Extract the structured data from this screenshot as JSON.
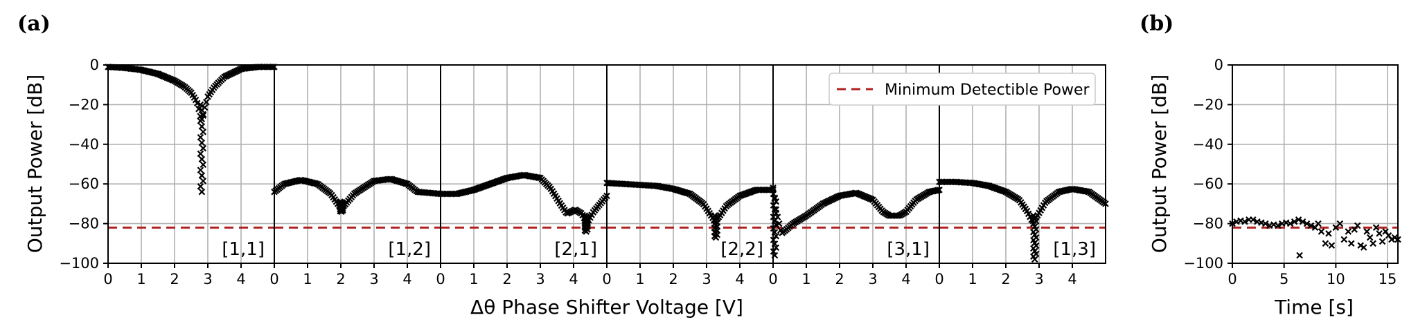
{
  "figure": {
    "panel_a_tag": "(a)",
    "panel_b_tag": "(b)",
    "colors": {
      "threshold": "#b22222",
      "markers": "#000000",
      "grid": "#b0b0b0"
    }
  },
  "chart_data": [
    {
      "type": "scatter",
      "panel": "(a)",
      "xlabel": "Δθ Phase Shifter Voltage [V]",
      "ylabel": "Output Power [dB]",
      "ylim": [
        -100,
        0
      ],
      "yticks": [
        0,
        -20,
        -40,
        -60,
        -80,
        -100
      ],
      "grid": true,
      "legend": {
        "location": "upper right",
        "entries": [
          "Minimum Detectible Power"
        ]
      },
      "reference_line": {
        "name": "Minimum Detectible Power",
        "y": -82
      },
      "subplots": [
        {
          "label": "[1,1]",
          "xlim": [
            0,
            5
          ],
          "xticks": [
            0,
            1,
            2,
            3,
            4
          ],
          "curve": [
            [
              0,
              -1
            ],
            [
              0.5,
              -1.5
            ],
            [
              1,
              -2.5
            ],
            [
              1.5,
              -4.5
            ],
            [
              2,
              -8
            ],
            [
              2.3,
              -11
            ],
            [
              2.5,
              -14
            ],
            [
              2.65,
              -18
            ],
            [
              2.7,
              -20
            ],
            [
              2.75,
              -24
            ],
            [
              2.8,
              -28
            ],
            [
              2.85,
              -26
            ],
            [
              2.9,
              -22
            ],
            [
              3,
              -16
            ],
            [
              3.2,
              -11
            ],
            [
              3.5,
              -6
            ],
            [
              4,
              -2
            ],
            [
              4.5,
              -1
            ],
            [
              5,
              -1
            ]
          ],
          "dip": {
            "x": 2.82,
            "y_min": -64,
            "y_max": -20
          }
        },
        {
          "label": "[1,2]",
          "xlim": [
            0,
            5
          ],
          "xticks": [
            0,
            1,
            2,
            3,
            4
          ],
          "curve": [
            [
              0,
              -64
            ],
            [
              0.3,
              -60
            ],
            [
              0.8,
              -58
            ],
            [
              1.3,
              -60
            ],
            [
              1.7,
              -65
            ],
            [
              1.95,
              -71
            ],
            [
              2.1,
              -71
            ],
            [
              2.4,
              -65
            ],
            [
              3,
              -58.5
            ],
            [
              3.5,
              -57.5
            ],
            [
              4,
              -60
            ],
            [
              4.3,
              -64
            ],
            [
              5,
              -65
            ]
          ],
          "dip": {
            "x": 2.02,
            "y_min": -74,
            "y_max": -69
          }
        },
        {
          "label": "[2,1]",
          "xlim": [
            0,
            5
          ],
          "xticks": [
            0,
            1,
            2,
            3,
            4
          ],
          "curve": [
            [
              0,
              -65
            ],
            [
              0.5,
              -65
            ],
            [
              1,
              -63
            ],
            [
              1.5,
              -60
            ],
            [
              2,
              -57
            ],
            [
              2.5,
              -55.5
            ],
            [
              3,
              -57
            ],
            [
              3.3,
              -62
            ],
            [
              3.6,
              -70
            ],
            [
              3.8,
              -75
            ],
            [
              4.05,
              -73
            ],
            [
              4.25,
              -75
            ],
            [
              4.4,
              -80
            ],
            [
              4.6,
              -74
            ],
            [
              4.8,
              -70
            ],
            [
              5,
              -66
            ]
          ],
          "dip": {
            "x": 4.38,
            "y_min": -84,
            "y_max": -76
          }
        },
        {
          "label": "[2,2]",
          "xlim": [
            0,
            5
          ],
          "xticks": [
            0,
            1,
            2,
            3,
            4
          ],
          "curve": [
            [
              0,
              -59.5
            ],
            [
              0.5,
              -60
            ],
            [
              1,
              -60.5
            ],
            [
              1.5,
              -61
            ],
            [
              2,
              -62.5
            ],
            [
              2.5,
              -65
            ],
            [
              2.9,
              -70
            ],
            [
              3.1,
              -75
            ],
            [
              3.25,
              -79
            ],
            [
              3.4,
              -76
            ],
            [
              3.6,
              -71
            ],
            [
              4,
              -66
            ],
            [
              4.5,
              -63
            ],
            [
              5,
              -63
            ]
          ],
          "dip": {
            "x": 3.28,
            "y_min": -87,
            "y_max": -76
          }
        },
        {
          "label": "[3,1]",
          "xlim": [
            0,
            5
          ],
          "xticks": [
            0,
            1,
            2,
            3,
            4
          ],
          "curve": [
            [
              0,
              -62
            ],
            [
              0.1,
              -74
            ],
            [
              0.25,
              -85
            ],
            [
              0.4,
              -83
            ],
            [
              0.6,
              -80
            ],
            [
              1,
              -76
            ],
            [
              1.5,
              -70
            ],
            [
              2,
              -66
            ],
            [
              2.5,
              -64.5
            ],
            [
              3,
              -68
            ],
            [
              3.3,
              -74
            ],
            [
              3.5,
              -76
            ],
            [
              3.8,
              -76
            ],
            [
              4,
              -74
            ],
            [
              4.3,
              -68
            ],
            [
              4.7,
              -64
            ],
            [
              5,
              -63
            ]
          ],
          "dip": {
            "x": 0.05,
            "y_min": -96,
            "y_max": -65
          }
        },
        {
          "label": "[1,3]",
          "xlim": [
            0,
            5
          ],
          "xticks": [
            0,
            1,
            2,
            3,
            4
          ],
          "curve": [
            [
              0,
              -59
            ],
            [
              0.5,
              -59
            ],
            [
              1,
              -59.5
            ],
            [
              1.5,
              -61
            ],
            [
              2,
              -64
            ],
            [
              2.4,
              -68
            ],
            [
              2.65,
              -74
            ],
            [
              2.8,
              -79
            ],
            [
              2.95,
              -76
            ],
            [
              3.2,
              -69
            ],
            [
              3.6,
              -64
            ],
            [
              4,
              -62.5
            ],
            [
              4.5,
              -64
            ],
            [
              5,
              -70
            ]
          ],
          "dip": {
            "x": 2.87,
            "y_min": -98,
            "y_max": -76
          }
        }
      ]
    },
    {
      "type": "scatter",
      "panel": "(b)",
      "xlabel": "Time [s]",
      "ylabel": "Output Power [dB]",
      "xlim": [
        0,
        16
      ],
      "ylim": [
        -100,
        0
      ],
      "xticks": [
        0,
        5,
        10,
        15
      ],
      "yticks": [
        0,
        -20,
        -40,
        -60,
        -80,
        -100
      ],
      "grid": true,
      "reference_line": {
        "y": -82
      },
      "x": [
        0,
        0.4,
        0.8,
        1.2,
        1.6,
        2.0,
        2.4,
        2.8,
        3.2,
        3.6,
        4.0,
        4.4,
        4.8,
        5.2,
        5.6,
        6.0,
        6.4,
        6.5,
        6.8,
        7.2,
        7.6,
        8.0,
        8.3,
        8.6,
        9.0,
        9.3,
        9.6,
        10.0,
        10.4,
        10.8,
        11.2,
        11.5,
        11.8,
        12.1,
        12.4,
        12.7,
        13.0,
        13.3,
        13.6,
        13.9,
        14.2,
        14.5,
        14.8,
        15.1,
        15.4,
        15.7,
        16.0
      ],
      "y": [
        -80,
        -79,
        -78.5,
        -79,
        -78,
        -78,
        -79,
        -79.5,
        -80,
        -81,
        -80.5,
        -81,
        -80,
        -79.5,
        -80,
        -79,
        -78,
        -96,
        -79,
        -80,
        -81,
        -82,
        -80,
        -84,
        -90,
        -85,
        -91,
        -82,
        -80,
        -88,
        -84,
        -90,
        -83,
        -81,
        -91,
        -92,
        -84,
        -87,
        -90,
        -82,
        -85,
        -89,
        -84,
        -86,
        -88,
        -87,
        -88
      ]
    }
  ]
}
